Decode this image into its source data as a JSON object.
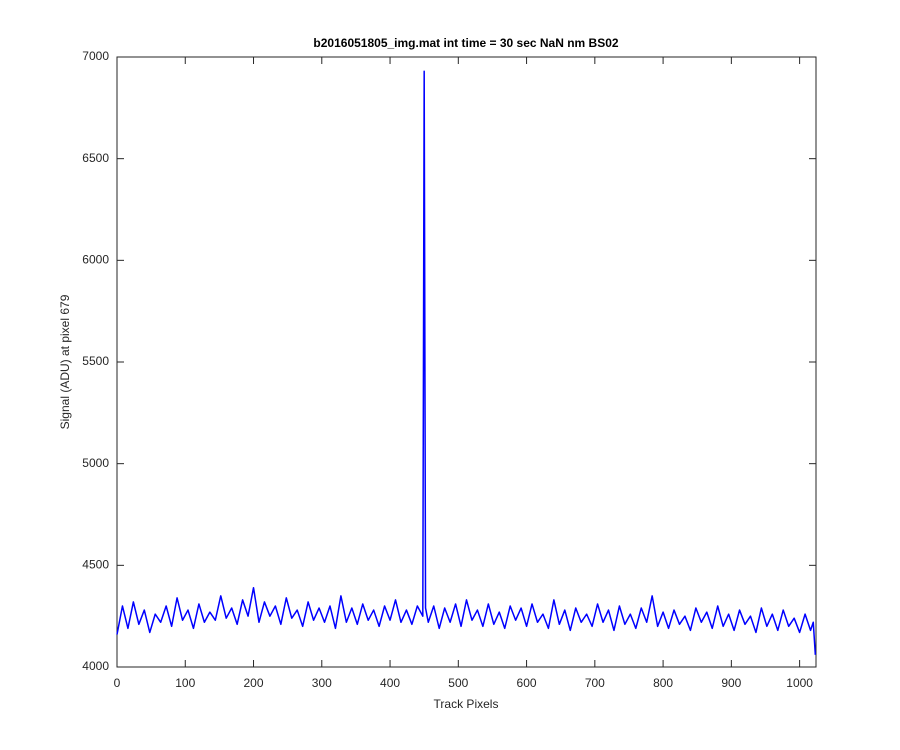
{
  "chart_data": {
    "type": "line",
    "title": "b2016051805_img.mat int time = 30 sec  NaN nm BS02",
    "xlabel": "Track Pixels",
    "ylabel": "Signal (ADU) at pixel 679",
    "x": [
      0,
      8,
      16,
      24,
      32,
      40,
      48,
      56,
      64,
      72,
      80,
      88,
      96,
      104,
      112,
      120,
      128,
      136,
      144,
      152,
      160,
      168,
      176,
      184,
      192,
      200,
      208,
      216,
      224,
      232,
      240,
      248,
      256,
      264,
      272,
      280,
      288,
      296,
      304,
      312,
      320,
      328,
      336,
      344,
      352,
      360,
      368,
      376,
      384,
      392,
      400,
      408,
      416,
      424,
      432,
      440,
      448,
      450,
      452,
      456,
      464,
      472,
      480,
      488,
      496,
      504,
      512,
      520,
      528,
      536,
      544,
      552,
      560,
      568,
      576,
      584,
      592,
      600,
      608,
      616,
      624,
      632,
      640,
      648,
      656,
      664,
      672,
      680,
      688,
      696,
      704,
      712,
      720,
      728,
      736,
      744,
      752,
      760,
      768,
      776,
      784,
      792,
      800,
      808,
      816,
      824,
      832,
      840,
      848,
      856,
      864,
      872,
      880,
      888,
      896,
      904,
      912,
      920,
      928,
      936,
      944,
      952,
      960,
      968,
      976,
      984,
      992,
      1000,
      1008,
      1016,
      1020,
      1023
    ],
    "series": [
      {
        "color": "#0000ff",
        "values": [
          4160,
          4300,
          4190,
          4320,
          4210,
          4280,
          4170,
          4260,
          4220,
          4300,
          4200,
          4340,
          4230,
          4280,
          4190,
          4310,
          4220,
          4270,
          4230,
          4350,
          4240,
          4290,
          4210,
          4330,
          4250,
          4390,
          4220,
          4320,
          4250,
          4300,
          4210,
          4340,
          4240,
          4280,
          4200,
          4320,
          4230,
          4290,
          4220,
          4300,
          4190,
          4350,
          4220,
          4290,
          4210,
          4310,
          4230,
          4280,
          4200,
          4300,
          4230,
          4330,
          4220,
          4280,
          4210,
          4300,
          4250,
          6930,
          4290,
          4220,
          4300,
          4190,
          4290,
          4220,
          4310,
          4200,
          4330,
          4230,
          4280,
          4200,
          4310,
          4210,
          4270,
          4190,
          4300,
          4230,
          4290,
          4200,
          4310,
          4220,
          4260,
          4190,
          4330,
          4210,
          4280,
          4180,
          4290,
          4220,
          4260,
          4200,
          4310,
          4220,
          4280,
          4180,
          4300,
          4210,
          4260,
          4190,
          4290,
          4220,
          4350,
          4200,
          4270,
          4190,
          4280,
          4210,
          4250,
          4180,
          4290,
          4220,
          4270,
          4190,
          4300,
          4200,
          4260,
          4180,
          4280,
          4210,
          4250,
          4170,
          4290,
          4200,
          4260,
          4180,
          4280,
          4200,
          4240,
          4170,
          4260,
          4180,
          4220,
          4060
        ]
      }
    ],
    "xlim": [
      0,
      1024
    ],
    "ylim": [
      4000,
      7000
    ],
    "xticks": [
      0,
      100,
      200,
      300,
      400,
      500,
      600,
      700,
      800,
      900,
      1000
    ],
    "yticks": [
      4000,
      4500,
      5000,
      5500,
      6000,
      6500,
      7000
    ],
    "grid": false
  }
}
